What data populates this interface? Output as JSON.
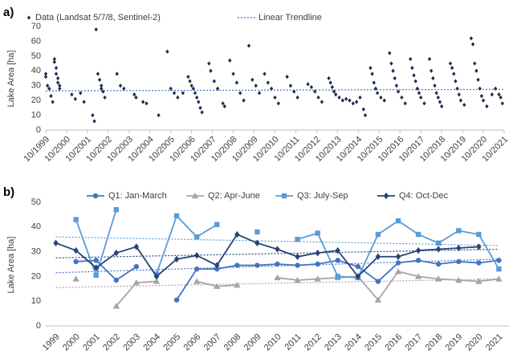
{
  "chart_data": [
    {
      "type": "scatter",
      "label": "a)",
      "ylabel": "Lake Area [ha]",
      "xlim": [
        "10/1999",
        "10/2021"
      ],
      "xticks": [
        "10/1999",
        "10/2000",
        "10/2001",
        "10/2002",
        "10/2003",
        "10/2004",
        "10/2005",
        "10/2006",
        "10/2007",
        "10/2008",
        "10/2009",
        "10/2010",
        "10/2011",
        "10/2012",
        "10/2013",
        "10/2014",
        "10/2015",
        "10/2016",
        "10/2017",
        "10/2018",
        "10/2019",
        "10/2020",
        "10/2021"
      ],
      "ylim": [
        0,
        70
      ],
      "yticks": [
        0,
        10,
        20,
        30,
        40,
        50,
        60,
        70
      ],
      "series": [
        {
          "name": "Data (Landsat 5/7/8, Sentinel-2)",
          "color": "#1f2d4f",
          "x": [
            "10/1999",
            "10/1999",
            "11/1999",
            "12/1999",
            "01/2000",
            "02/2000",
            "03/2000",
            "03/2000",
            "04/2000",
            "04/2000",
            "05/2000",
            "05/2000",
            "06/2000",
            "06/2000",
            "01/2001",
            "03/2001",
            "06/2001",
            "08/2001",
            "01/2002",
            "02/2002",
            "03/2002",
            "04/2002",
            "05/2002",
            "06/2002",
            "06/2002",
            "07/2002",
            "08/2002",
            "03/2003",
            "05/2003",
            "07/2003",
            "01/2004",
            "02/2004",
            "06/2004",
            "08/2004",
            "03/2005",
            "08/2005",
            "10/2005",
            "12/2005",
            "02/2006",
            "05/2006",
            "08/2006",
            "09/2006",
            "10/2006",
            "11/2006",
            "12/2006",
            "01/2007",
            "02/2007",
            "03/2007",
            "04/2007",
            "08/2007",
            "09/2007",
            "11/2007",
            "01/2008",
            "04/2008",
            "05/2008",
            "08/2008",
            "10/2008",
            "12/2008",
            "02/2009",
            "04/2009",
            "07/2009",
            "09/2009",
            "11/2009",
            "01/2010",
            "04/2010",
            "06/2010",
            "08/2010",
            "10/2010",
            "12/2010",
            "05/2011",
            "07/2011",
            "09/2011",
            "11/2011",
            "05/2012",
            "07/2012",
            "09/2012",
            "11/2012",
            "01/2013",
            "05/2013",
            "06/2013",
            "07/2013",
            "08/2013",
            "09/2013",
            "11/2013",
            "01/2014",
            "03/2014",
            "05/2014",
            "07/2014",
            "09/2014",
            "11/2014",
            "01/2015",
            "02/2015",
            "05/2015",
            "06/2015",
            "07/2015",
            "08/2015",
            "09/2015",
            "11/2015",
            "01/2016",
            "04/2016",
            "05/2016",
            "06/2016",
            "07/2016",
            "08/2016",
            "09/2016",
            "11/2016",
            "01/2017",
            "04/2017",
            "05/2017",
            "06/2017",
            "07/2017",
            "08/2017",
            "09/2017",
            "10/2017",
            "12/2017",
            "03/2018",
            "04/2018",
            "05/2018",
            "06/2018",
            "07/2018",
            "08/2018",
            "09/2018",
            "10/2018",
            "03/2019",
            "04/2019",
            "05/2019",
            "06/2019",
            "07/2019",
            "08/2019",
            "09/2019",
            "11/2019",
            "03/2020",
            "04/2020",
            "05/2020",
            "06/2020",
            "07/2020",
            "08/2020",
            "09/2020",
            "10/2020",
            "12/2020",
            "03/2021",
            "05/2021",
            "07/2021",
            "08/2021",
            "09/2021"
          ],
          "values": [
            38,
            36,
            30,
            28,
            23,
            19,
            48,
            46,
            42,
            38,
            35,
            32,
            30,
            28,
            24,
            21,
            25,
            19,
            10,
            6,
            68,
            38,
            34,
            30,
            28,
            26,
            22,
            38,
            30,
            28,
            24,
            22,
            19,
            18,
            10,
            53,
            28,
            25,
            22,
            25,
            36,
            33,
            30,
            28,
            25,
            22,
            19,
            15,
            12,
            45,
            40,
            33,
            28,
            18,
            16,
            47,
            38,
            32,
            25,
            20,
            57,
            34,
            30,
            25,
            38,
            32,
            28,
            22,
            18,
            36,
            30,
            26,
            22,
            31,
            29,
            26,
            22,
            19,
            35,
            32,
            29,
            26,
            24,
            22,
            20,
            21,
            20,
            18,
            19,
            22,
            14,
            10,
            42,
            38,
            32,
            28,
            25,
            22,
            20,
            52,
            45,
            40,
            35,
            30,
            26,
            22,
            18,
            48,
            42,
            37,
            33,
            28,
            25,
            22,
            18,
            48,
            40,
            35,
            30,
            25,
            22,
            19,
            16,
            45,
            42,
            38,
            33,
            28,
            24,
            20,
            17,
            62,
            58,
            45,
            40,
            34,
            28,
            23,
            20,
            16,
            24,
            28,
            24,
            22,
            18
          ]
        }
      ],
      "trendline": {
        "name": "Linear Trendline",
        "color": "#4472c4",
        "x": [
          "10/1999",
          "10/2021"
        ],
        "values": [
          26.5,
          27.5
        ]
      }
    },
    {
      "type": "line",
      "label": "b)",
      "ylabel": "Lake Area [ha]",
      "categories": [
        "1999",
        "2000",
        "2001",
        "2002",
        "2003",
        "2004",
        "2005",
        "2006",
        "2007",
        "2008",
        "2009",
        "2010",
        "2011",
        "2012",
        "2013",
        "2014",
        "2015",
        "2016",
        "2017",
        "2018",
        "2019",
        "2020",
        "2021"
      ],
      "ylim": [
        0,
        50
      ],
      "yticks": [
        0,
        10,
        20,
        30,
        40,
        50
      ],
      "series": [
        {
          "name": "Q1: Jan-March",
          "color": "#4472c4",
          "marker": "circle",
          "values": [
            null,
            26,
            26.5,
            18.5,
            24,
            null,
            10.5,
            23,
            23,
            24.5,
            24.5,
            25,
            24.5,
            25,
            26.5,
            24,
            18,
            25.5,
            26.5,
            25,
            26,
            25.5,
            26.5
          ]
        },
        {
          "name": "Q2: Apr-June",
          "color": "#a5a5a5",
          "marker": "triangle",
          "values": [
            null,
            19,
            null,
            8,
            17.5,
            18,
            null,
            18,
            16,
            16.5,
            null,
            19.5,
            18.5,
            19,
            19.5,
            20,
            10.5,
            22,
            20,
            19,
            18.5,
            18,
            19
          ]
        },
        {
          "name": "Q3: July-Sep",
          "color": "#5b9bd5",
          "marker": "square",
          "values": [
            null,
            43,
            20.5,
            47,
            null,
            21,
            44.5,
            36,
            41,
            null,
            38,
            null,
            35,
            37.5,
            20,
            19.5,
            37,
            42.5,
            37,
            33.5,
            38.5,
            37,
            23
          ]
        },
        {
          "name": "Q4: Oct-Dec",
          "color": "#264478",
          "marker": "diamond",
          "values": [
            33.5,
            30.5,
            23.5,
            29.5,
            32,
            20,
            27,
            28.5,
            24.5,
            37,
            33.5,
            31,
            28,
            29.5,
            30.5,
            20,
            28,
            28,
            30.5,
            31,
            31.5,
            32,
            null
          ]
        }
      ],
      "trendlines": [
        {
          "color": "#4472c4",
          "values": [
            21.5,
            27
          ]
        },
        {
          "color": "#a5a5a5",
          "values": [
            15.5,
            19
          ]
        },
        {
          "color": "#5b9bd5",
          "values": [
            36,
            32.5
          ]
        },
        {
          "color": "#264478",
          "values": [
            27.5,
            31
          ]
        }
      ]
    }
  ]
}
